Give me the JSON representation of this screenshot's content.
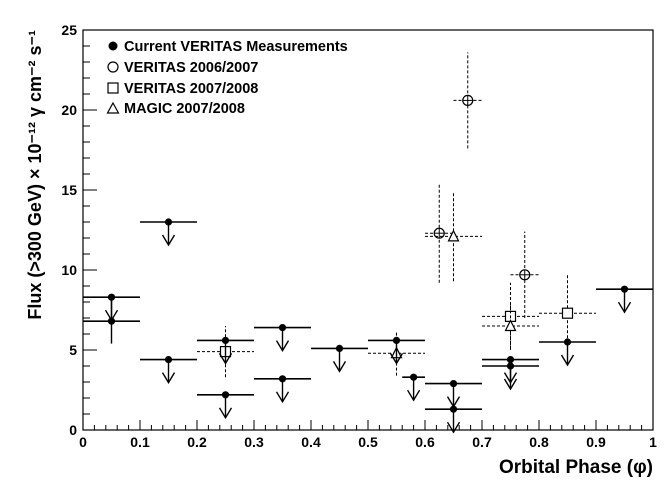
{
  "chart_data": {
    "type": "scatter",
    "title": "",
    "xlabel": "Orbital Phase (φ)",
    "ylabel": "Flux (>300 GeV) × 10⁻¹² γ cm⁻² s⁻¹",
    "xlim": [
      0,
      1
    ],
    "ylim": [
      0,
      25
    ],
    "xticks": [
      "0",
      "0.1",
      "0.2",
      "0.3",
      "0.4",
      "0.5",
      "0.6",
      "0.7",
      "0.8",
      "0.9",
      "1"
    ],
    "yticks": [
      "0",
      "5",
      "10",
      "15",
      "20",
      "25"
    ],
    "legend_position": "top-left",
    "series": [
      {
        "name": "Current VERITAS Measurements",
        "marker": "filled-circle",
        "points": [
          {
            "x": 0.05,
            "xerr": 0.05,
            "y": 8.3,
            "upper_limit": true
          },
          {
            "x": 0.05,
            "xerr": 0.05,
            "y": 6.8,
            "yerr": 1.4,
            "upper_limit": false
          },
          {
            "x": 0.15,
            "xerr": 0.05,
            "y": 13.0,
            "upper_limit": true
          },
          {
            "x": 0.15,
            "xerr": 0.05,
            "y": 4.4,
            "upper_limit": true
          },
          {
            "x": 0.25,
            "xerr": 0.05,
            "y": 5.6,
            "upper_limit": true
          },
          {
            "x": 0.25,
            "xerr": 0.05,
            "y": 2.2,
            "upper_limit": true
          },
          {
            "x": 0.35,
            "xerr": 0.05,
            "y": 6.4,
            "upper_limit": true
          },
          {
            "x": 0.35,
            "xerr": 0.05,
            "y": 3.2,
            "upper_limit": true
          },
          {
            "x": 0.45,
            "xerr": 0.05,
            "y": 5.1,
            "upper_limit": true
          },
          {
            "x": 0.55,
            "xerr": 0.05,
            "y": 5.6,
            "upper_limit": true
          },
          {
            "x": 0.58,
            "xerr": 0.02,
            "y": 3.3,
            "upper_limit": true
          },
          {
            "x": 0.65,
            "xerr": 0.05,
            "y": 2.9,
            "upper_limit": true
          },
          {
            "x": 0.65,
            "xerr": 0.05,
            "y": 1.3,
            "upper_limit": true
          },
          {
            "x": 0.75,
            "xerr": 0.05,
            "y": 4.4,
            "upper_limit": true
          },
          {
            "x": 0.75,
            "xerr": 0.05,
            "y": 4.0,
            "upper_limit": true
          },
          {
            "x": 0.85,
            "xerr": 0.05,
            "y": 5.5,
            "upper_limit": true
          },
          {
            "x": 0.95,
            "xerr": 0.05,
            "y": 8.8,
            "upper_limit": true
          }
        ]
      },
      {
        "name": "VERITAS 2006/2007",
        "marker": "open-circle",
        "points": [
          {
            "x": 0.625,
            "xerr": 0.025,
            "y": 12.3,
            "yerr": 3.1
          },
          {
            "x": 0.675,
            "xerr": 0.025,
            "y": 20.6,
            "yerr": 3.0
          },
          {
            "x": 0.775,
            "xerr": 0.025,
            "y": 9.7,
            "yerr": 2.7
          }
        ]
      },
      {
        "name": "VERITAS 2007/2008",
        "marker": "open-square",
        "points": [
          {
            "x": 0.25,
            "xerr": 0.05,
            "y": 4.9,
            "yerr": 1.6
          },
          {
            "x": 0.75,
            "xerr": 0.05,
            "y": 7.1,
            "yerr": 2.1
          },
          {
            "x": 0.85,
            "xerr": 0.05,
            "y": 7.3,
            "yerr": 2.5
          }
        ]
      },
      {
        "name": "MAGIC 2007/2008",
        "marker": "open-triangle",
        "points": [
          {
            "x": 0.55,
            "xerr": 0.05,
            "y": 4.8,
            "yerr": 1.4
          },
          {
            "x": 0.65,
            "xerr": 0.05,
            "y": 12.1,
            "yerr": 2.8
          },
          {
            "x": 0.75,
            "xerr": 0.05,
            "y": 6.5,
            "yerr": 1.4
          }
        ]
      }
    ]
  }
}
